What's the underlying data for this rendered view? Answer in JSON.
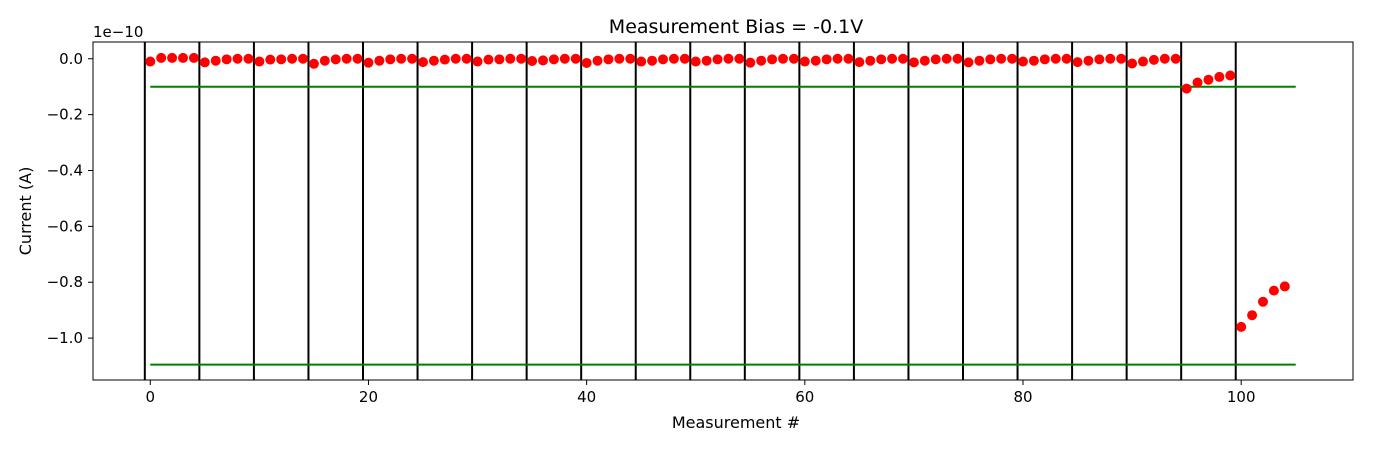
{
  "chart_data": {
    "type": "scatter",
    "title": "Measurement Bias = -0.1V",
    "xlabel": "Measurement #",
    "ylabel": "Current (A)",
    "offset_text": "1e−10",
    "scale": 1e-10,
    "xlim": [
      -5.25,
      110.25
    ],
    "ylim": [
      -1.15,
      0.06
    ],
    "x_ticks": [
      0,
      20,
      40,
      60,
      80,
      100
    ],
    "x_tick_labels": [
      "0",
      "20",
      "40",
      "60",
      "80",
      "100"
    ],
    "y_ticks": [
      0.0,
      -0.2,
      -0.4,
      -0.6,
      -0.8,
      -1.0
    ],
    "y_tick_labels": [
      "0.0",
      "−0.2",
      "−0.4",
      "−0.6",
      "−0.8",
      "−1.0"
    ],
    "grid": false,
    "legend": "none",
    "colors": {
      "points": "#ff0000",
      "limits": "#008000",
      "separators": "#000000"
    },
    "separators_x": [
      -0.5,
      4.5,
      9.5,
      14.5,
      19.5,
      24.5,
      29.5,
      34.5,
      39.5,
      44.5,
      49.5,
      54.5,
      59.5,
      64.5,
      69.5,
      74.5,
      79.5,
      84.5,
      89.5,
      94.5,
      99.5
    ],
    "limit_lines": [
      {
        "y": -0.1,
        "x_from": 0,
        "x_to": 105
      },
      {
        "y": -1.095,
        "x_from": 0,
        "x_to": 105
      }
    ],
    "series": [
      {
        "x": [
          0,
          1,
          2,
          3,
          4,
          5,
          6,
          7,
          8,
          9,
          10,
          11,
          12,
          13,
          14,
          15,
          16,
          17,
          18,
          19,
          20,
          21,
          22,
          23,
          24,
          25,
          26,
          27,
          28,
          29,
          30,
          31,
          32,
          33,
          34,
          35,
          36,
          37,
          38,
          39,
          40,
          41,
          42,
          43,
          44,
          45,
          46,
          47,
          48,
          49,
          50,
          51,
          52,
          53,
          54,
          55,
          56,
          57,
          58,
          59,
          60,
          61,
          62,
          63,
          64,
          65,
          66,
          67,
          68,
          69,
          70,
          71,
          72,
          73,
          74,
          75,
          76,
          77,
          78,
          79,
          80,
          81,
          82,
          83,
          84,
          85,
          86,
          87,
          88,
          89,
          90,
          91,
          92,
          93,
          94,
          95,
          96,
          97,
          98,
          99,
          100,
          101,
          102,
          103,
          104
        ],
        "y": [
          -0.01,
          0.003,
          0.003,
          0.003,
          0.003,
          -0.013,
          -0.007,
          -0.002,
          0.0,
          0.0,
          -0.01,
          -0.003,
          -0.002,
          0.0,
          0.0,
          -0.018,
          -0.007,
          -0.002,
          0.0,
          0.0,
          -0.014,
          -0.007,
          -0.002,
          0.0,
          0.0,
          -0.012,
          -0.007,
          -0.003,
          0.0,
          0.0,
          -0.01,
          -0.003,
          -0.002,
          0.0,
          0.0,
          -0.008,
          -0.006,
          -0.002,
          0.0,
          0.0,
          -0.015,
          -0.007,
          -0.002,
          0.0,
          0.0,
          -0.01,
          -0.007,
          -0.002,
          0.0,
          0.0,
          -0.01,
          -0.007,
          -0.002,
          0.0,
          0.0,
          -0.014,
          -0.007,
          -0.002,
          0.0,
          0.0,
          -0.01,
          -0.007,
          -0.002,
          0.0,
          0.0,
          -0.012,
          -0.007,
          -0.002,
          0.0,
          0.0,
          -0.013,
          -0.007,
          -0.002,
          0.0,
          0.0,
          -0.013,
          -0.007,
          -0.002,
          0.0,
          0.0,
          -0.01,
          -0.007,
          -0.002,
          0.0,
          0.0,
          -0.012,
          -0.007,
          -0.002,
          0.0,
          0.0,
          -0.017,
          -0.01,
          -0.004,
          0.0,
          0.0,
          -0.107,
          -0.085,
          -0.075,
          -0.065,
          -0.06,
          -0.96,
          -0.918,
          -0.87,
          -0.83,
          -0.815
        ]
      }
    ]
  }
}
